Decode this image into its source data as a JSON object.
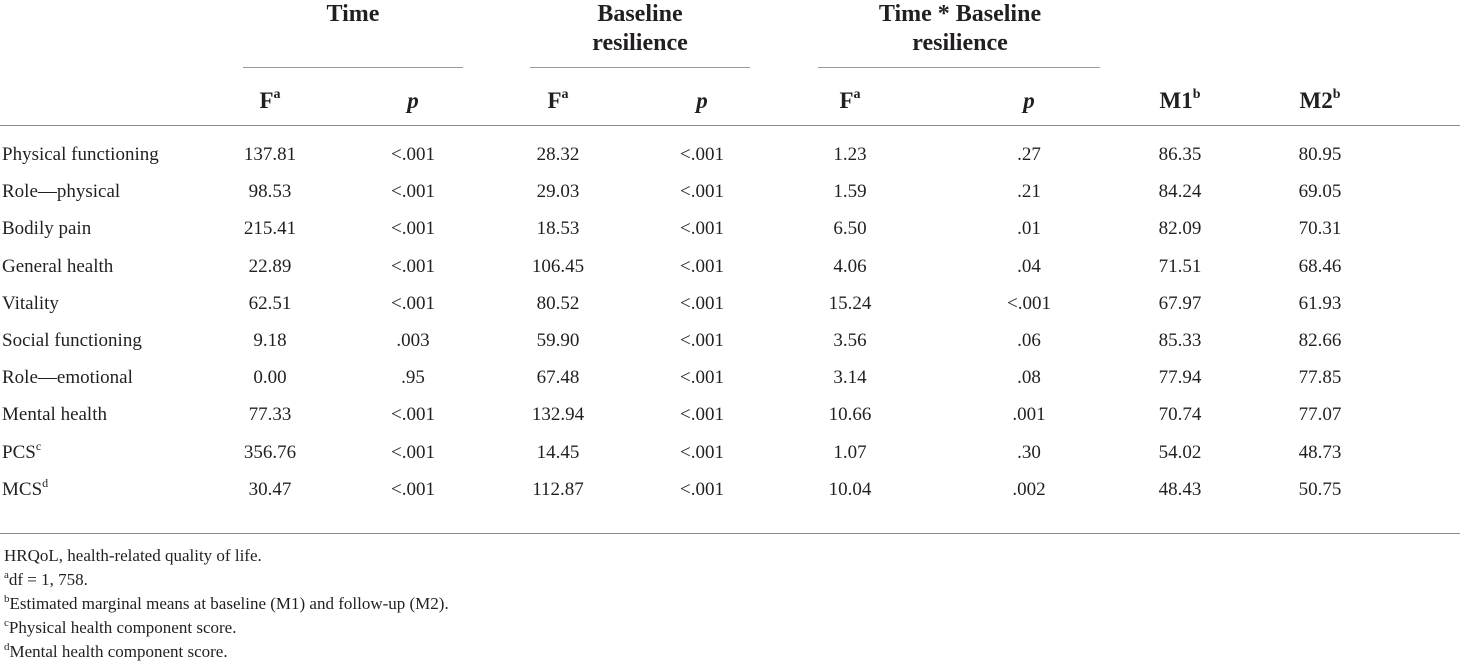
{
  "groups": [
    "Time",
    "Baseline resilience",
    "Time * Baseline resilience"
  ],
  "group_lines": [
    [
      "Time"
    ],
    [
      "Baseline",
      "resilience"
    ],
    [
      "Time * Baseline",
      "resilience"
    ]
  ],
  "headers": {
    "f": "F",
    "f_sup": "a",
    "p": "p",
    "m1": "M1",
    "m1_sup": "b",
    "m2": "M2",
    "m2_sup": "b"
  },
  "rows": [
    {
      "label": "Physical functioning",
      "sup": "",
      "values": [
        "137.81",
        "<.001",
        "28.32",
        "<.001",
        "1.23",
        ".27",
        "86.35",
        "80.95"
      ]
    },
    {
      "label": "Role—physical",
      "sup": "",
      "values": [
        "98.53",
        "<.001",
        "29.03",
        "<.001",
        "1.59",
        ".21",
        "84.24",
        "69.05"
      ]
    },
    {
      "label": "Bodily pain",
      "sup": "",
      "values": [
        "215.41",
        "<.001",
        "18.53",
        "<.001",
        "6.50",
        ".01",
        "82.09",
        "70.31"
      ]
    },
    {
      "label": "General health",
      "sup": "",
      "values": [
        "22.89",
        "<.001",
        "106.45",
        "<.001",
        "4.06",
        ".04",
        "71.51",
        "68.46"
      ]
    },
    {
      "label": "Vitality",
      "sup": "",
      "values": [
        "62.51",
        "<.001",
        "80.52",
        "<.001",
        "15.24",
        "<.001",
        "67.97",
        "61.93"
      ]
    },
    {
      "label": "Social functioning",
      "sup": "",
      "values": [
        "9.18",
        ".003",
        "59.90",
        "<.001",
        "3.56",
        ".06",
        "85.33",
        "82.66"
      ]
    },
    {
      "label": "Role—emotional",
      "sup": "",
      "values": [
        "0.00",
        ".95",
        "67.48",
        "<.001",
        "3.14",
        ".08",
        "77.94",
        "77.85"
      ]
    },
    {
      "label": "Mental health",
      "sup": "",
      "values": [
        "77.33",
        "<.001",
        "132.94",
        "<.001",
        "10.66",
        ".001",
        "70.74",
        "77.07"
      ]
    },
    {
      "label": "PCS",
      "sup": "c",
      "values": [
        "356.76",
        "<.001",
        "14.45",
        "<.001",
        "1.07",
        ".30",
        "54.02",
        "48.73"
      ]
    },
    {
      "label": "MCS",
      "sup": "d",
      "values": [
        "30.47",
        "<.001",
        "112.87",
        "<.001",
        "10.04",
        ".002",
        "48.43",
        "50.75"
      ]
    }
  ],
  "notes": [
    {
      "sup": "",
      "text": "HRQoL, health-related quality of life."
    },
    {
      "sup": "a",
      "text": "df = 1, 758."
    },
    {
      "sup": "b",
      "text": "Estimated marginal means at baseline (M1) and follow-up (M2)."
    },
    {
      "sup": "c",
      "text": "Physical health component score."
    },
    {
      "sup": "d",
      "text": "Mental health component score."
    }
  ]
}
